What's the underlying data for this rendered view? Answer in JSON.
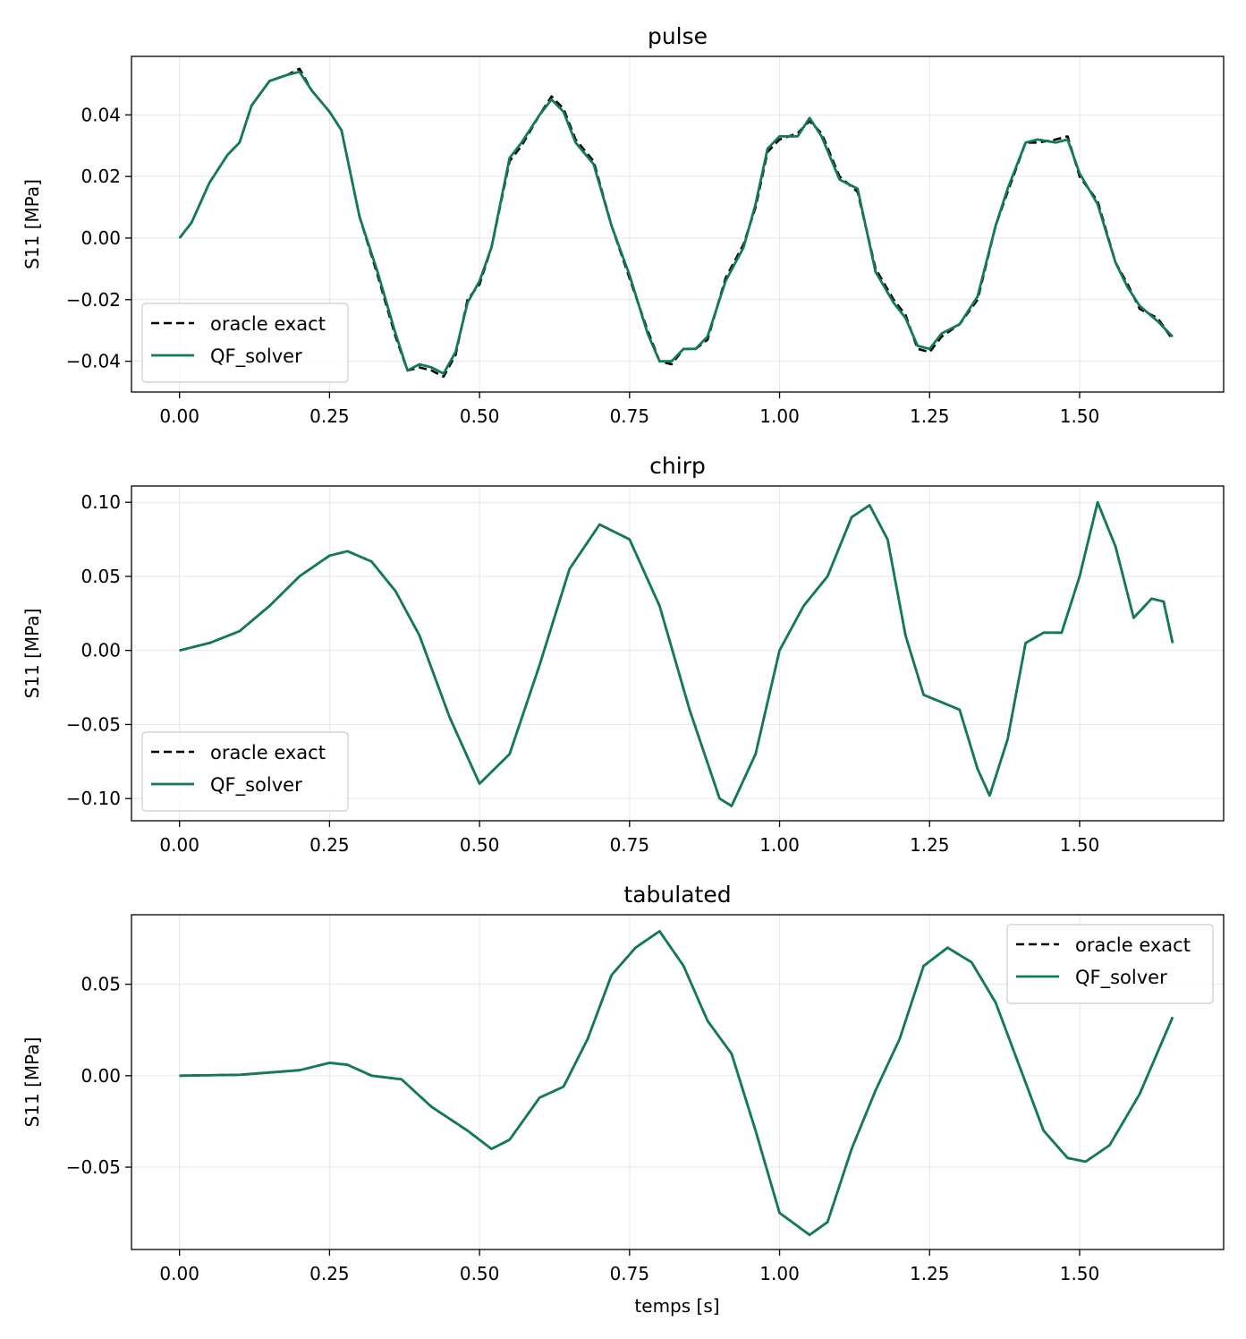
{
  "figure": {
    "xlabel": "temps [s]"
  },
  "legend": {
    "entries": [
      "oracle exact",
      "QF_solver"
    ]
  },
  "colors": {
    "oracle": "#000000",
    "solver": "#127a55",
    "grid": "#e6e6e6"
  },
  "chart_data": [
    {
      "type": "line",
      "title": "pulse",
      "xlabel": "",
      "ylabel": "S11 [MPa]",
      "xlim": [
        -0.08,
        1.74
      ],
      "ylim": [
        -0.05,
        0.059
      ],
      "xticks": [
        0.0,
        0.25,
        0.5,
        0.75,
        1.0,
        1.25,
        1.5
      ],
      "xtick_labels": [
        "0.00",
        "0.25",
        "0.50",
        "0.75",
        "1.00",
        "1.25",
        "1.50"
      ],
      "yticks": [
        -0.04,
        -0.02,
        0.0,
        0.02,
        0.04
      ],
      "ytick_labels": [
        "−0.04",
        "−0.02",
        "0.00",
        "0.02",
        "0.04"
      ],
      "grid": true,
      "legend_position": "lower-left",
      "series": [
        {
          "name": "oracle exact",
          "style": "dashed",
          "x": [
            0,
            0.02,
            0.05,
            0.08,
            0.1,
            0.12,
            0.15,
            0.18,
            0.2,
            0.22,
            0.25,
            0.27,
            0.3,
            0.33,
            0.36,
            0.38,
            0.4,
            0.42,
            0.44,
            0.46,
            0.48,
            0.5,
            0.52,
            0.55,
            0.57,
            0.6,
            0.62,
            0.64,
            0.66,
            0.69,
            0.72,
            0.75,
            0.78,
            0.8,
            0.82,
            0.84,
            0.86,
            0.88,
            0.91,
            0.94,
            0.96,
            0.98,
            1.0,
            1.03,
            1.05,
            1.07,
            1.1,
            1.13,
            1.16,
            1.19,
            1.21,
            1.23,
            1.25,
            1.27,
            1.3,
            1.33,
            1.36,
            1.38,
            1.41,
            1.43,
            1.46,
            1.48,
            1.5,
            1.53,
            1.56,
            1.58,
            1.6,
            1.63,
            1.655
          ],
          "y": [
            0,
            0.005,
            0.018,
            0.027,
            0.031,
            0.043,
            0.051,
            0.053,
            0.055,
            0.048,
            0.041,
            0.035,
            0.007,
            -0.012,
            -0.032,
            -0.043,
            -0.042,
            -0.043,
            -0.045,
            -0.038,
            -0.02,
            -0.015,
            -0.003,
            0.025,
            0.03,
            0.04,
            0.046,
            0.042,
            0.032,
            0.025,
            0.004,
            -0.013,
            -0.03,
            -0.04,
            -0.041,
            -0.036,
            -0.036,
            -0.033,
            -0.013,
            -0.002,
            0.01,
            0.028,
            0.032,
            0.034,
            0.038,
            0.034,
            0.02,
            0.015,
            -0.01,
            -0.02,
            -0.025,
            -0.036,
            -0.037,
            -0.032,
            -0.028,
            -0.02,
            0.004,
            0.015,
            0.031,
            0.031,
            0.032,
            0.033,
            0.02,
            0.012,
            -0.008,
            -0.015,
            -0.023,
            -0.026,
            -0.033
          ]
        },
        {
          "name": "QF_solver",
          "style": "solid",
          "x": [
            0,
            0.02,
            0.05,
            0.08,
            0.1,
            0.12,
            0.15,
            0.18,
            0.2,
            0.22,
            0.25,
            0.27,
            0.3,
            0.33,
            0.36,
            0.38,
            0.4,
            0.42,
            0.44,
            0.46,
            0.48,
            0.5,
            0.52,
            0.55,
            0.57,
            0.6,
            0.62,
            0.64,
            0.66,
            0.69,
            0.72,
            0.75,
            0.78,
            0.8,
            0.82,
            0.84,
            0.86,
            0.88,
            0.91,
            0.94,
            0.96,
            0.98,
            1.0,
            1.03,
            1.05,
            1.07,
            1.1,
            1.13,
            1.16,
            1.19,
            1.21,
            1.23,
            1.25,
            1.27,
            1.3,
            1.33,
            1.36,
            1.38,
            1.41,
            1.43,
            1.46,
            1.48,
            1.5,
            1.53,
            1.56,
            1.58,
            1.6,
            1.63,
            1.655
          ],
          "y": [
            0,
            0.005,
            0.018,
            0.027,
            0.031,
            0.043,
            0.051,
            0.053,
            0.054,
            0.048,
            0.041,
            0.035,
            0.007,
            -0.011,
            -0.031,
            -0.043,
            -0.041,
            -0.042,
            -0.044,
            -0.037,
            -0.021,
            -0.014,
            -0.003,
            0.026,
            0.031,
            0.04,
            0.045,
            0.041,
            0.031,
            0.024,
            0.004,
            -0.012,
            -0.031,
            -0.04,
            -0.04,
            -0.036,
            -0.036,
            -0.032,
            -0.014,
            -0.003,
            0.011,
            0.029,
            0.033,
            0.033,
            0.039,
            0.033,
            0.019,
            0.016,
            -0.011,
            -0.021,
            -0.026,
            -0.035,
            -0.036,
            -0.031,
            -0.028,
            -0.019,
            0.004,
            0.016,
            0.031,
            0.032,
            0.031,
            0.032,
            0.021,
            0.011,
            -0.008,
            -0.016,
            -0.022,
            -0.027,
            -0.032
          ]
        }
      ]
    },
    {
      "type": "line",
      "title": "chirp",
      "xlabel": "",
      "ylabel": "S11 [MPa]",
      "xlim": [
        -0.08,
        1.74
      ],
      "ylim": [
        -0.115,
        0.111
      ],
      "xticks": [
        0.0,
        0.25,
        0.5,
        0.75,
        1.0,
        1.25,
        1.5
      ],
      "xtick_labels": [
        "0.00",
        "0.25",
        "0.50",
        "0.75",
        "1.00",
        "1.25",
        "1.50"
      ],
      "yticks": [
        -0.1,
        -0.05,
        0.0,
        0.05,
        0.1
      ],
      "ytick_labels": [
        "−0.10",
        "−0.05",
        "0.00",
        "0.05",
        "0.10"
      ],
      "grid": true,
      "legend_position": "lower-left",
      "series": [
        {
          "name": "oracle exact",
          "style": "dashed",
          "x": [
            0,
            0.05,
            0.1,
            0.15,
            0.2,
            0.25,
            0.28,
            0.32,
            0.36,
            0.4,
            0.45,
            0.5,
            0.55,
            0.6,
            0.65,
            0.7,
            0.75,
            0.8,
            0.85,
            0.9,
            0.92,
            0.96,
            1.0,
            1.04,
            1.08,
            1.12,
            1.15,
            1.18,
            1.21,
            1.24,
            1.27,
            1.3,
            1.33,
            1.35,
            1.38,
            1.41,
            1.44,
            1.47,
            1.5,
            1.53,
            1.56,
            1.59,
            1.62,
            1.64,
            1.655
          ],
          "y": [
            0,
            0.005,
            0.013,
            0.03,
            0.05,
            0.064,
            0.067,
            0.06,
            0.04,
            0.01,
            -0.045,
            -0.09,
            -0.07,
            -0.01,
            0.055,
            0.085,
            0.075,
            0.03,
            -0.04,
            -0.1,
            -0.105,
            -0.07,
            0.0,
            0.03,
            0.05,
            0.09,
            0.098,
            0.075,
            0.01,
            -0.03,
            -0.035,
            -0.04,
            -0.08,
            -0.098,
            -0.06,
            0.005,
            0.012,
            0.012,
            0.05,
            0.1,
            0.07,
            0.022,
            0.035,
            0.033,
            0.005
          ]
        },
        {
          "name": "QF_solver",
          "style": "solid",
          "x": [
            0,
            0.05,
            0.1,
            0.15,
            0.2,
            0.25,
            0.28,
            0.32,
            0.36,
            0.4,
            0.45,
            0.5,
            0.55,
            0.6,
            0.65,
            0.7,
            0.75,
            0.8,
            0.85,
            0.9,
            0.92,
            0.96,
            1.0,
            1.04,
            1.08,
            1.12,
            1.15,
            1.18,
            1.21,
            1.24,
            1.27,
            1.3,
            1.33,
            1.35,
            1.38,
            1.41,
            1.44,
            1.47,
            1.5,
            1.53,
            1.56,
            1.59,
            1.62,
            1.64,
            1.655
          ],
          "y": [
            0,
            0.005,
            0.013,
            0.03,
            0.05,
            0.064,
            0.067,
            0.06,
            0.04,
            0.01,
            -0.045,
            -0.09,
            -0.07,
            -0.01,
            0.055,
            0.085,
            0.075,
            0.03,
            -0.04,
            -0.1,
            -0.105,
            -0.07,
            0.0,
            0.03,
            0.05,
            0.09,
            0.098,
            0.075,
            0.01,
            -0.03,
            -0.035,
            -0.04,
            -0.08,
            -0.098,
            -0.06,
            0.005,
            0.012,
            0.012,
            0.05,
            0.1,
            0.07,
            0.022,
            0.035,
            0.033,
            0.005
          ]
        }
      ]
    },
    {
      "type": "line",
      "title": "tabulated",
      "xlabel": "temps [s]",
      "ylabel": "S11 [MPa]",
      "xlim": [
        -0.08,
        1.74
      ],
      "ylim": [
        -0.095,
        0.088
      ],
      "xticks": [
        0.0,
        0.25,
        0.5,
        0.75,
        1.0,
        1.25,
        1.5
      ],
      "xtick_labels": [
        "0.00",
        "0.25",
        "0.50",
        "0.75",
        "1.00",
        "1.25",
        "1.50"
      ],
      "yticks": [
        -0.05,
        0.0,
        0.05
      ],
      "ytick_labels": [
        "−0.05",
        "0.00",
        "0.05"
      ],
      "grid": true,
      "legend_position": "upper-right",
      "series": [
        {
          "name": "oracle exact",
          "style": "dashed",
          "x": [
            0,
            0.1,
            0.2,
            0.25,
            0.28,
            0.32,
            0.37,
            0.42,
            0.48,
            0.52,
            0.55,
            0.6,
            0.64,
            0.68,
            0.72,
            0.76,
            0.8,
            0.84,
            0.88,
            0.92,
            0.96,
            1.0,
            1.05,
            1.08,
            1.12,
            1.16,
            1.2,
            1.24,
            1.28,
            1.32,
            1.36,
            1.4,
            1.44,
            1.48,
            1.51,
            1.55,
            1.6,
            1.655
          ],
          "y": [
            0,
            0.0005,
            0.003,
            0.007,
            0.006,
            0.0,
            -0.002,
            -0.017,
            -0.03,
            -0.04,
            -0.035,
            -0.012,
            -0.006,
            0.02,
            0.055,
            0.07,
            0.079,
            0.06,
            0.03,
            0.012,
            -0.03,
            -0.075,
            -0.087,
            -0.08,
            -0.04,
            -0.008,
            0.02,
            0.06,
            0.07,
            0.062,
            0.04,
            0.005,
            -0.03,
            -0.045,
            -0.047,
            -0.038,
            -0.01,
            0.032
          ]
        },
        {
          "name": "QF_solver",
          "style": "solid",
          "x": [
            0,
            0.1,
            0.2,
            0.25,
            0.28,
            0.32,
            0.37,
            0.42,
            0.48,
            0.52,
            0.55,
            0.6,
            0.64,
            0.68,
            0.72,
            0.76,
            0.8,
            0.84,
            0.88,
            0.92,
            0.96,
            1.0,
            1.05,
            1.08,
            1.12,
            1.16,
            1.2,
            1.24,
            1.28,
            1.32,
            1.36,
            1.4,
            1.44,
            1.48,
            1.51,
            1.55,
            1.6,
            1.655
          ],
          "y": [
            0,
            0.0005,
            0.003,
            0.007,
            0.006,
            0.0,
            -0.002,
            -0.017,
            -0.03,
            -0.04,
            -0.035,
            -0.012,
            -0.006,
            0.02,
            0.055,
            0.07,
            0.079,
            0.06,
            0.03,
            0.012,
            -0.03,
            -0.075,
            -0.087,
            -0.08,
            -0.04,
            -0.008,
            0.02,
            0.06,
            0.07,
            0.062,
            0.04,
            0.005,
            -0.03,
            -0.045,
            -0.047,
            -0.038,
            -0.01,
            0.032
          ]
        }
      ]
    }
  ]
}
